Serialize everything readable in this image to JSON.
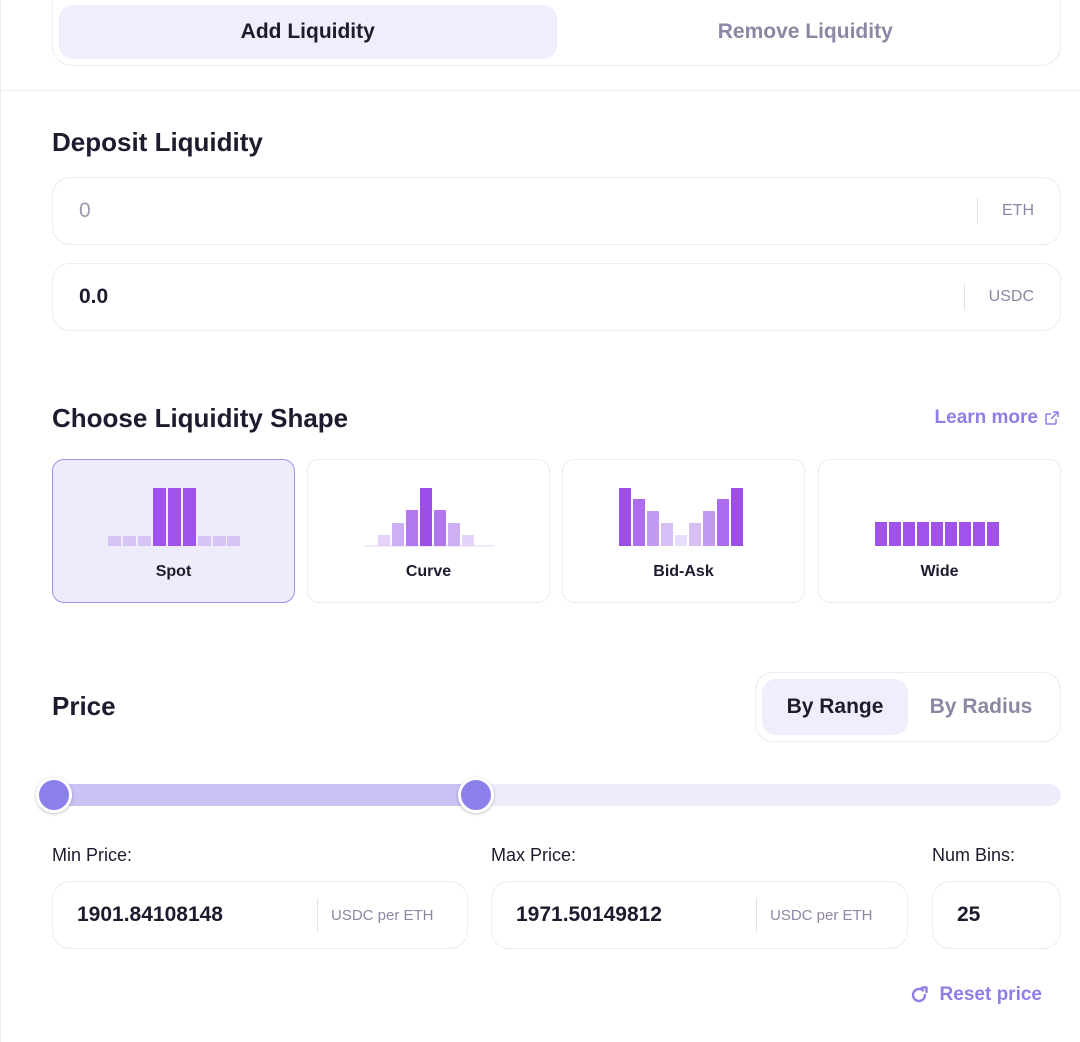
{
  "tabs": {
    "add": "Add Liquidity",
    "remove": "Remove Liquidity"
  },
  "deposit": {
    "title": "Deposit Liquidity",
    "token_a": {
      "value": "",
      "placeholder": "0",
      "unit": "ETH"
    },
    "token_b": {
      "value": "0.0",
      "unit": "USDC"
    }
  },
  "shape": {
    "title": "Choose Liquidity Shape",
    "learn_more": "Learn more",
    "options": [
      {
        "label": "Spot",
        "selected": true
      },
      {
        "label": "Curve",
        "selected": false
      },
      {
        "label": "Bid-Ask",
        "selected": false
      },
      {
        "label": "Wide",
        "selected": false
      }
    ]
  },
  "price": {
    "title": "Price",
    "mode_range": "By Range",
    "mode_radius": "By Radius",
    "min_label": "Min Price:",
    "max_label": "Max Price:",
    "bins_label": "Num Bins:",
    "min_value": "1901.84108148",
    "max_value": "1971.50149812",
    "unit": "USDC per ETH",
    "num_bins": "25",
    "slider_min_fraction": 0.0,
    "slider_max_fraction": 0.42,
    "reset": "Reset price"
  },
  "colors": {
    "accent": "#8d7fe6",
    "bar_dark": "#9b4ee8",
    "bar_light": "#d7c4f6"
  }
}
